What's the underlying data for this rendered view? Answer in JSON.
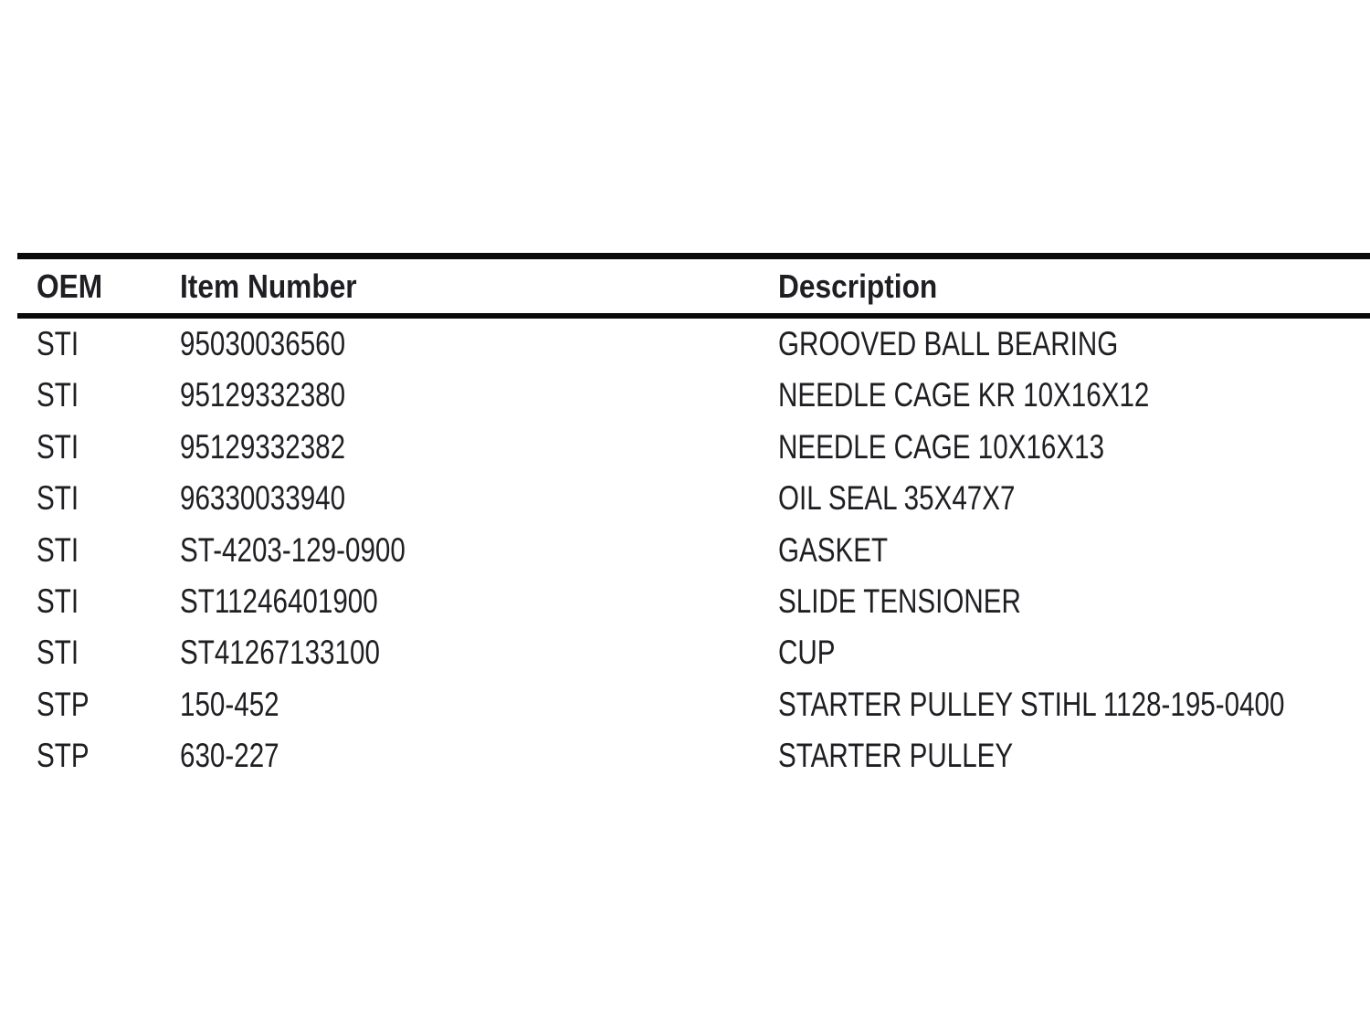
{
  "document": {
    "colors": {
      "background": "#ffffff",
      "text": "#1f1f23",
      "rule": "#0a0a0a"
    },
    "table": {
      "headers": {
        "oem": "OEM",
        "item_number": "Item Number",
        "description": "Description"
      },
      "rows": [
        {
          "oem": "STI",
          "item_number": "95030036560",
          "description": "GROOVED BALL BEARING"
        },
        {
          "oem": "STI",
          "item_number": "95129332380",
          "description": "NEEDLE CAGE KR 10X16X12"
        },
        {
          "oem": "STI",
          "item_number": "95129332382",
          "description": "NEEDLE CAGE 10X16X13"
        },
        {
          "oem": "STI",
          "item_number": "96330033940",
          "description": "OIL SEAL 35X47X7"
        },
        {
          "oem": "STI",
          "item_number": "ST-4203-129-0900",
          "description": "GASKET"
        },
        {
          "oem": "STI",
          "item_number": "ST11246401900",
          "description": "SLIDE TENSIONER"
        },
        {
          "oem": "STI",
          "item_number": "ST41267133100",
          "description": "CUP"
        },
        {
          "oem": "STP",
          "item_number": "150-452",
          "description": "STARTER PULLEY STIHL 1128-195-0400"
        },
        {
          "oem": "STP",
          "item_number": "630-227",
          "description": "STARTER PULLEY"
        }
      ]
    }
  }
}
